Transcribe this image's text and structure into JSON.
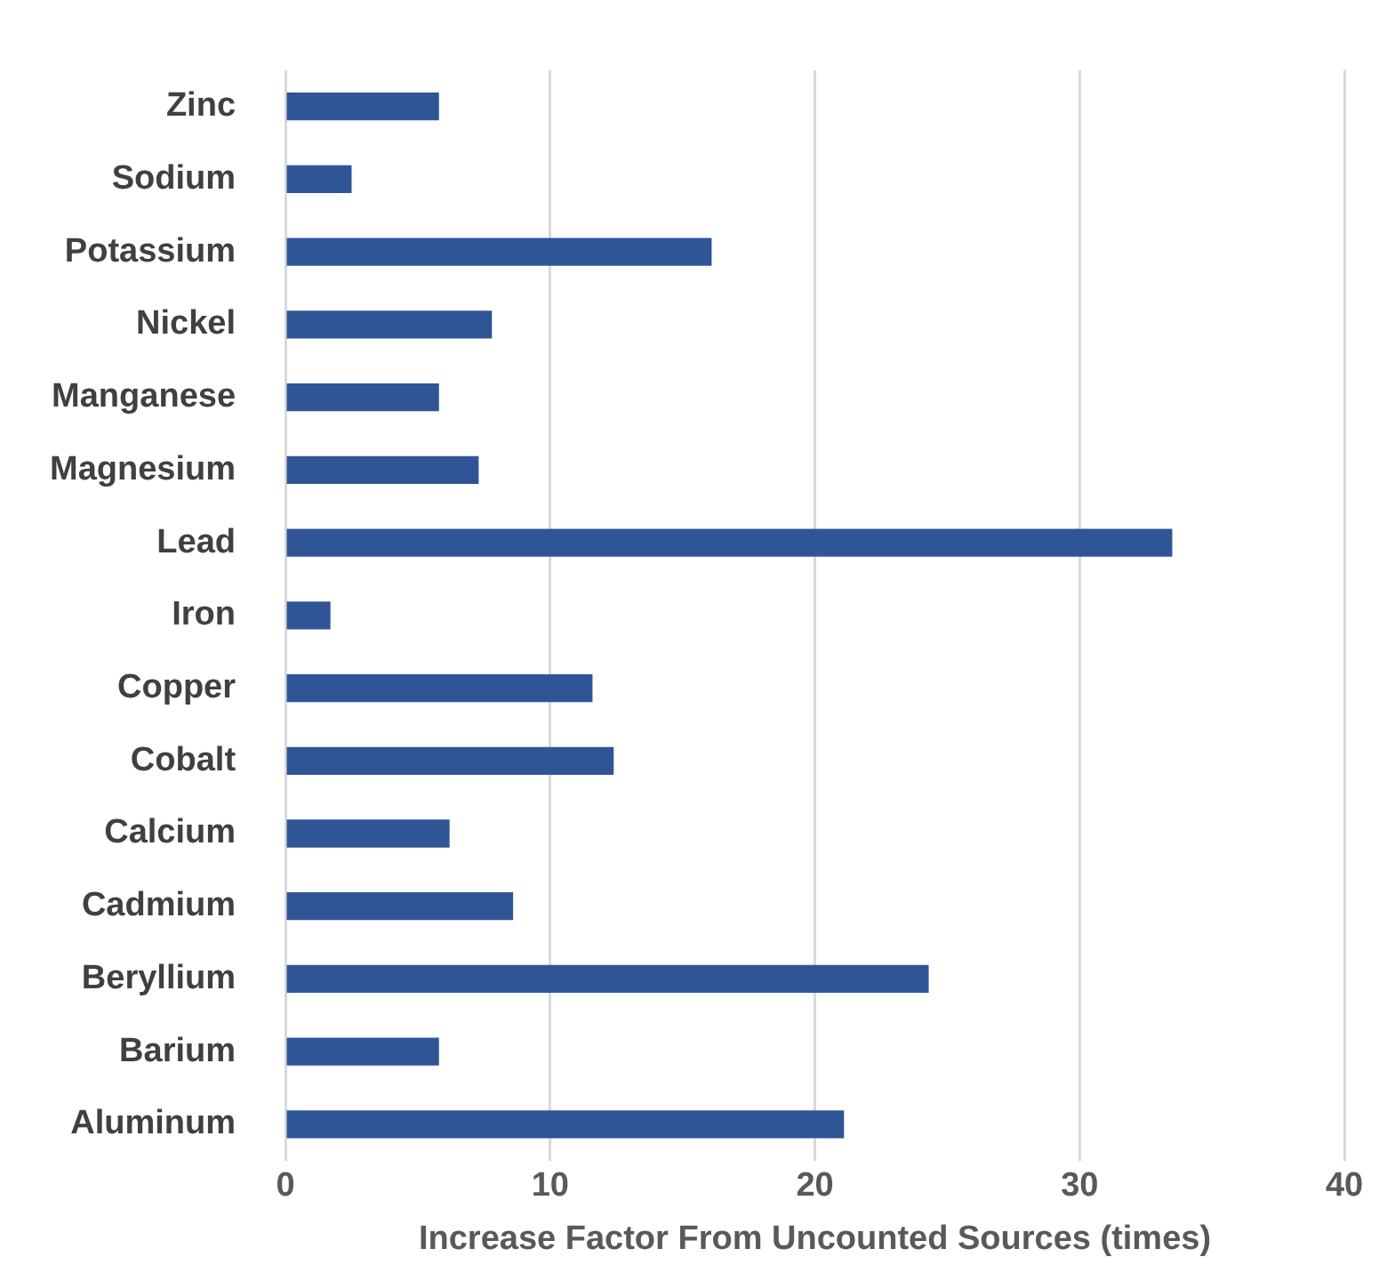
{
  "chart_data": {
    "type": "bar",
    "orientation": "horizontal",
    "xlabel": "Increase Factor From Uncounted Sources (times)",
    "categories": [
      "Zinc",
      "Sodium",
      "Potassium",
      "Nickel",
      "Manganese",
      "Magnesium",
      "Lead",
      "Iron",
      "Copper",
      "Cobalt",
      "Calcium",
      "Cadmium",
      "Beryllium",
      "Barium",
      "Aluminum"
    ],
    "values": [
      5.8,
      2.5,
      16.1,
      7.8,
      5.8,
      7.3,
      33.5,
      1.7,
      11.6,
      12.4,
      6.2,
      8.6,
      24.3,
      5.8,
      21.1
    ],
    "color": "#2f5597",
    "xlim": [
      0,
      40
    ],
    "xticks": [
      0,
      10,
      20,
      30,
      40
    ],
    "grid": "x",
    "legend": false
  }
}
